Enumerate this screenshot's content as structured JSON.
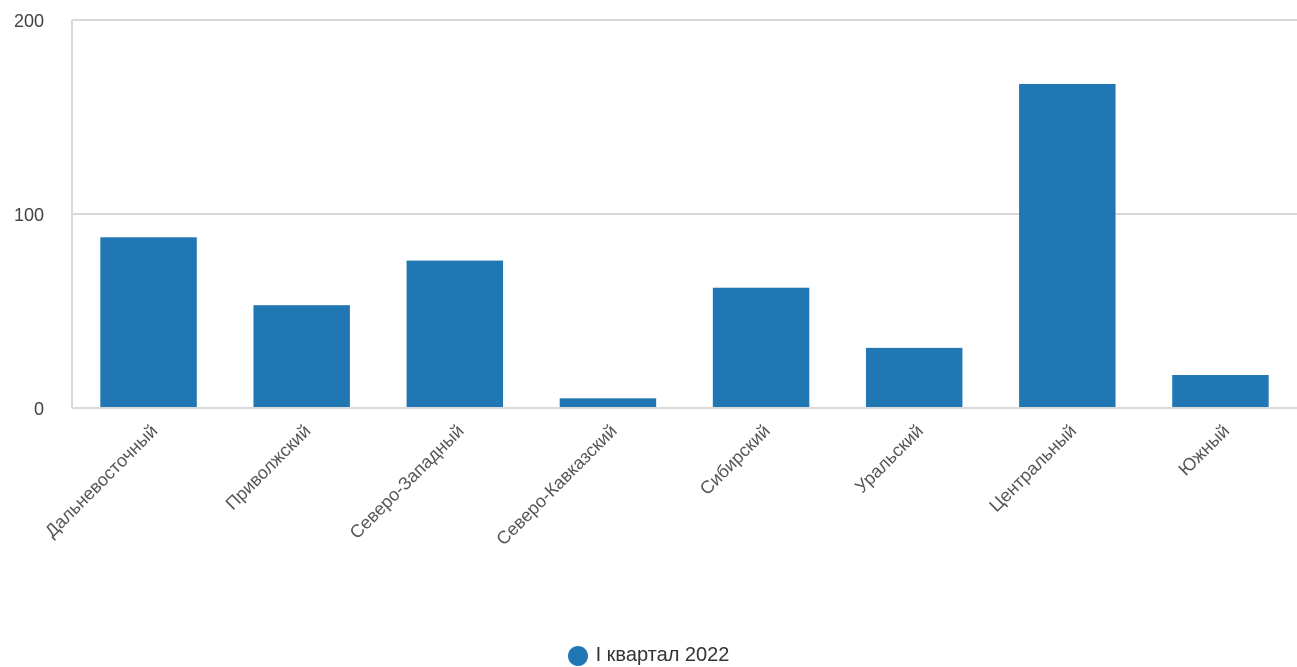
{
  "chart_data": {
    "type": "bar",
    "categories": [
      "Дальневосточный",
      "Приволжский",
      "Северо-Западный",
      "Северо-Кавказский",
      "Сибирский",
      "Уральский",
      "Центральный",
      "Южный"
    ],
    "series": [
      {
        "name": "I квартал 2022",
        "values": [
          88,
          53,
          76,
          5,
          62,
          31,
          167,
          17
        ],
        "color": "#2177b4"
      }
    ],
    "ylim": [
      0,
      200
    ],
    "yticks": [
      0,
      100,
      200
    ],
    "xlabel": "",
    "ylabel": "",
    "grid": true,
    "legend_position": "bottom-center"
  }
}
